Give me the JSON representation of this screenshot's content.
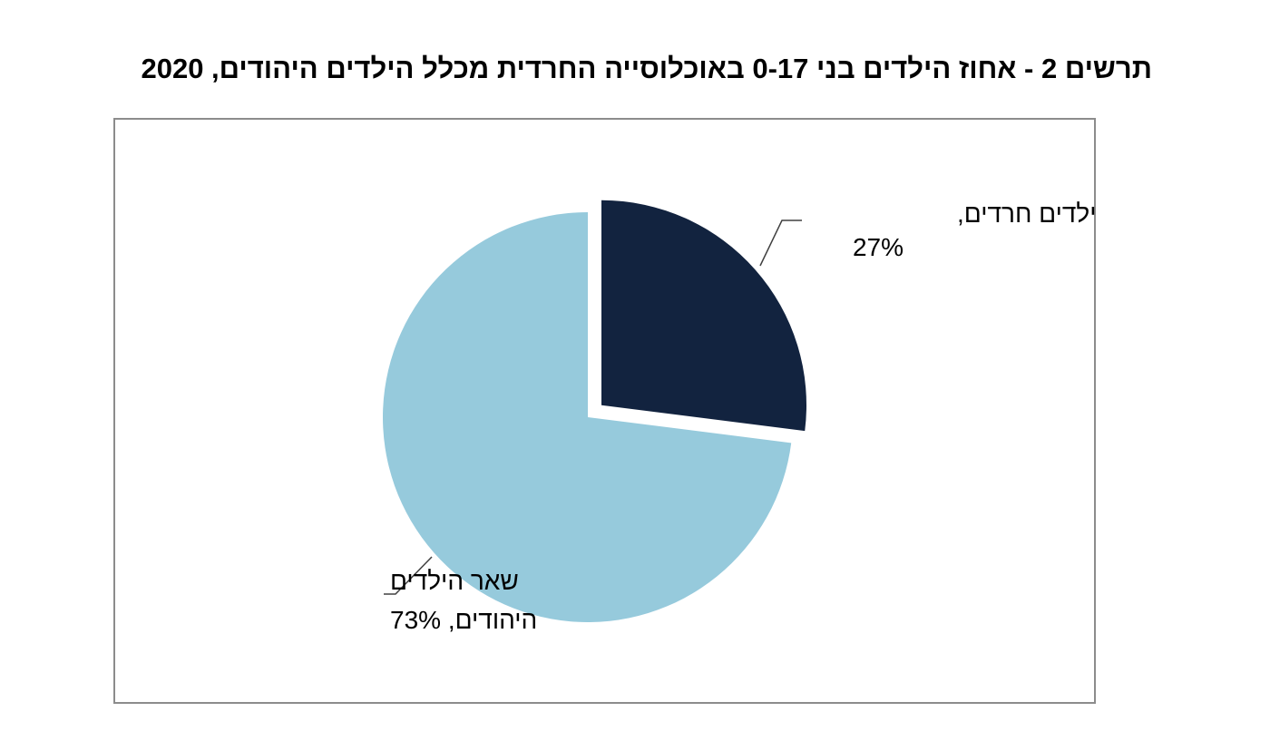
{
  "chart_data": {
    "type": "pie",
    "title": "תרשים 2 - אחוז הילדים בני 0-17 באוכלוסייה החרדית מכלל הילדים היהודים, 2020",
    "slices": [
      {
        "name": "ילדים חרדים",
        "label_line1": "ילדים חרדים,",
        "label_line2": "27%",
        "value": 27,
        "color": "#12233f",
        "exploded": true
      },
      {
        "name": "שאר הילדים היהודים",
        "label_line1": "שאר הילדים",
        "label_line2": "היהודים, 73%",
        "value": 73,
        "color": "#96cadc",
        "exploded": false
      }
    ],
    "legend": "none"
  }
}
